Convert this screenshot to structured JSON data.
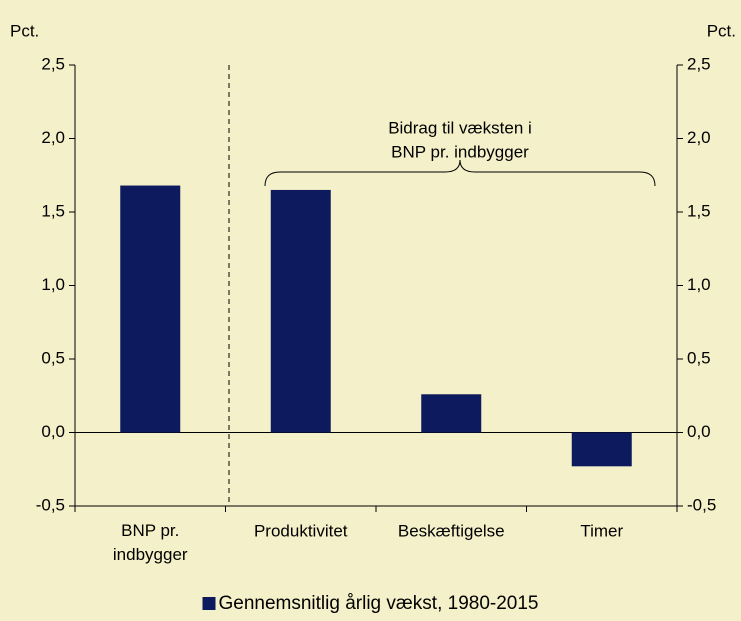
{
  "chart_data": {
    "type": "bar",
    "y_label": "Pct.",
    "y2_label": "Pct.",
    "annotation": [
      "Bidrag til væksten i",
      "BNP pr. indbygger"
    ],
    "categories": [
      "BNP pr. indbygger",
      "Produktivitet",
      "Beskæftigelse",
      "Timer"
    ],
    "series": [
      {
        "name": "Gennemsnitlig årlig vækst, 1980-2015",
        "color": "#0e1a5e",
        "values": [
          1.68,
          1.65,
          0.26,
          -0.23
        ]
      }
    ],
    "ylim": [
      -0.5,
      2.5
    ],
    "yticks": [
      {
        "value": -0.5,
        "label": "-0,5"
      },
      {
        "value": 0,
        "label": "0,0"
      },
      {
        "value": 0.5,
        "label": "0,5"
      },
      {
        "value": 1.0,
        "label": "1,0"
      },
      {
        "value": 1.5,
        "label": "1,5"
      },
      {
        "value": 2.0,
        "label": "2,0"
      },
      {
        "value": 2.5,
        "label": "2,5"
      }
    ],
    "y2lim": [
      -0.5,
      2.5
    ],
    "y2ticks": [
      {
        "value": -0.5,
        "label": "-0,5"
      },
      {
        "value": 0,
        "label": "0,0"
      },
      {
        "value": 0.5,
        "label": "0,5"
      },
      {
        "value": 1.0,
        "label": "1,0"
      },
      {
        "value": 1.5,
        "label": "1,5"
      },
      {
        "value": 2.0,
        "label": "2,0"
      },
      {
        "value": 2.5,
        "label": "2,5"
      }
    ],
    "legend": "bottom"
  }
}
